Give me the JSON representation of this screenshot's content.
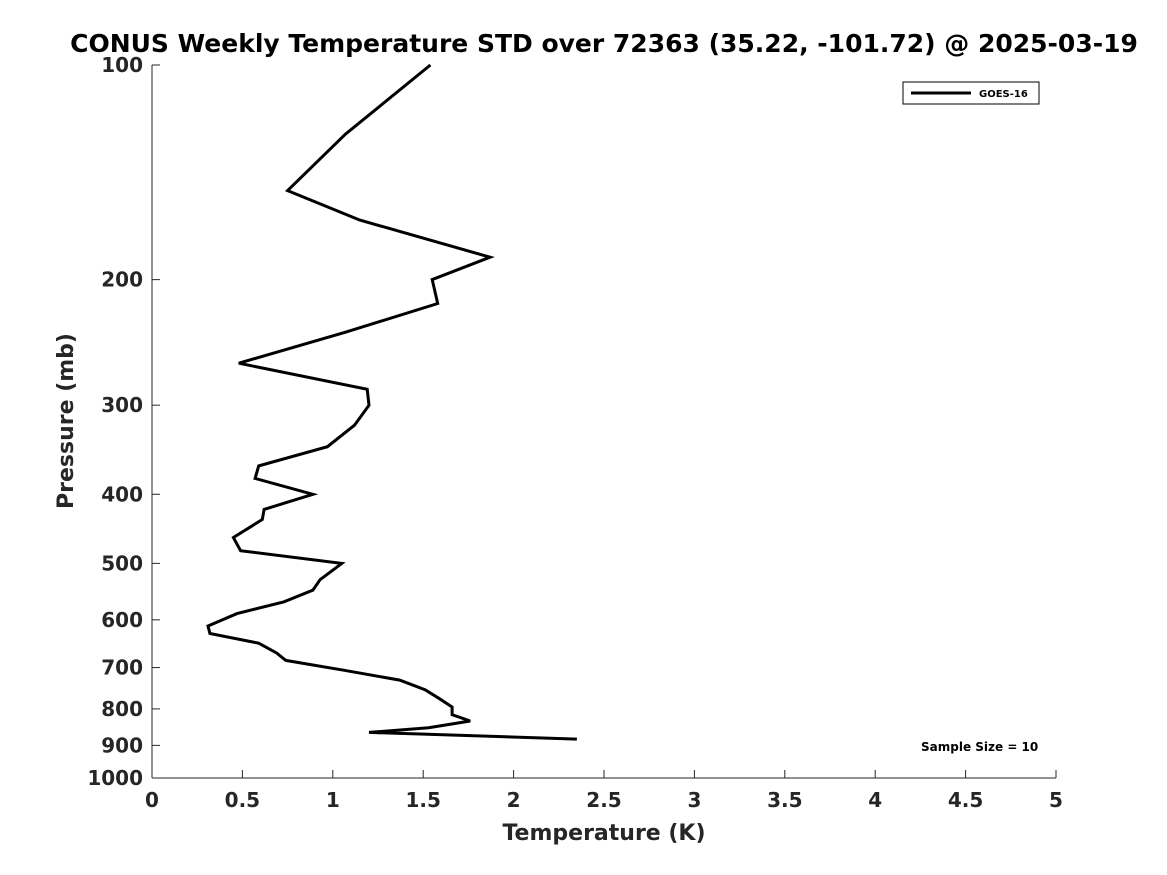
{
  "chart_data": {
    "type": "line",
    "title": "CONUS Weekly Temperature STD over 72363 (35.22, -101.72) @ 2025-03-19",
    "xlabel": "Temperature (K)",
    "ylabel": "Pressure (mb)",
    "xlim": [
      0,
      5
    ],
    "ylim": [
      100,
      1000
    ],
    "y_scale": "log",
    "y_reversed": true,
    "x_ticks": [
      "0",
      "0.5",
      "1",
      "1.5",
      "2",
      "2.5",
      "3",
      "3.5",
      "4",
      "4.5",
      "5"
    ],
    "y_ticks": [
      "100",
      "200",
      "300",
      "400",
      "500",
      "600",
      "700",
      "800",
      "900",
      "1000"
    ],
    "grid": false,
    "legend": {
      "position": "top-right",
      "entries": [
        "GOES-16"
      ]
    },
    "annotation": "Sample Size = 10",
    "series": [
      {
        "name": "GOES-16",
        "color": "#000000",
        "points": [
          {
            "x": 1.54,
            "p": 100
          },
          {
            "x": 1.07,
            "p": 125
          },
          {
            "x": 0.75,
            "p": 150
          },
          {
            "x": 1.15,
            "p": 165
          },
          {
            "x": 1.87,
            "p": 186
          },
          {
            "x": 1.55,
            "p": 200
          },
          {
            "x": 1.58,
            "p": 216
          },
          {
            "x": 1.07,
            "p": 237
          },
          {
            "x": 0.48,
            "p": 262
          },
          {
            "x": 1.19,
            "p": 285
          },
          {
            "x": 1.2,
            "p": 300
          },
          {
            "x": 1.12,
            "p": 320
          },
          {
            "x": 0.97,
            "p": 343
          },
          {
            "x": 0.59,
            "p": 365
          },
          {
            "x": 0.57,
            "p": 380
          },
          {
            "x": 0.89,
            "p": 400
          },
          {
            "x": 0.62,
            "p": 420
          },
          {
            "x": 0.61,
            "p": 434
          },
          {
            "x": 0.45,
            "p": 460
          },
          {
            "x": 0.49,
            "p": 480
          },
          {
            "x": 1.05,
            "p": 500
          },
          {
            "x": 0.93,
            "p": 527
          },
          {
            "x": 0.89,
            "p": 545
          },
          {
            "x": 0.73,
            "p": 566
          },
          {
            "x": 0.47,
            "p": 588
          },
          {
            "x": 0.31,
            "p": 612
          },
          {
            "x": 0.32,
            "p": 627
          },
          {
            "x": 0.59,
            "p": 647
          },
          {
            "x": 0.69,
            "p": 668
          },
          {
            "x": 0.74,
            "p": 684
          },
          {
            "x": 1.06,
            "p": 706
          },
          {
            "x": 1.37,
            "p": 729
          },
          {
            "x": 1.51,
            "p": 752
          },
          {
            "x": 1.59,
            "p": 774
          },
          {
            "x": 1.66,
            "p": 795
          },
          {
            "x": 1.66,
            "p": 815
          },
          {
            "x": 1.76,
            "p": 832
          },
          {
            "x": 1.53,
            "p": 850
          },
          {
            "x": 1.2,
            "p": 863
          },
          {
            "x": 2.35,
            "p": 882
          }
        ]
      }
    ]
  }
}
